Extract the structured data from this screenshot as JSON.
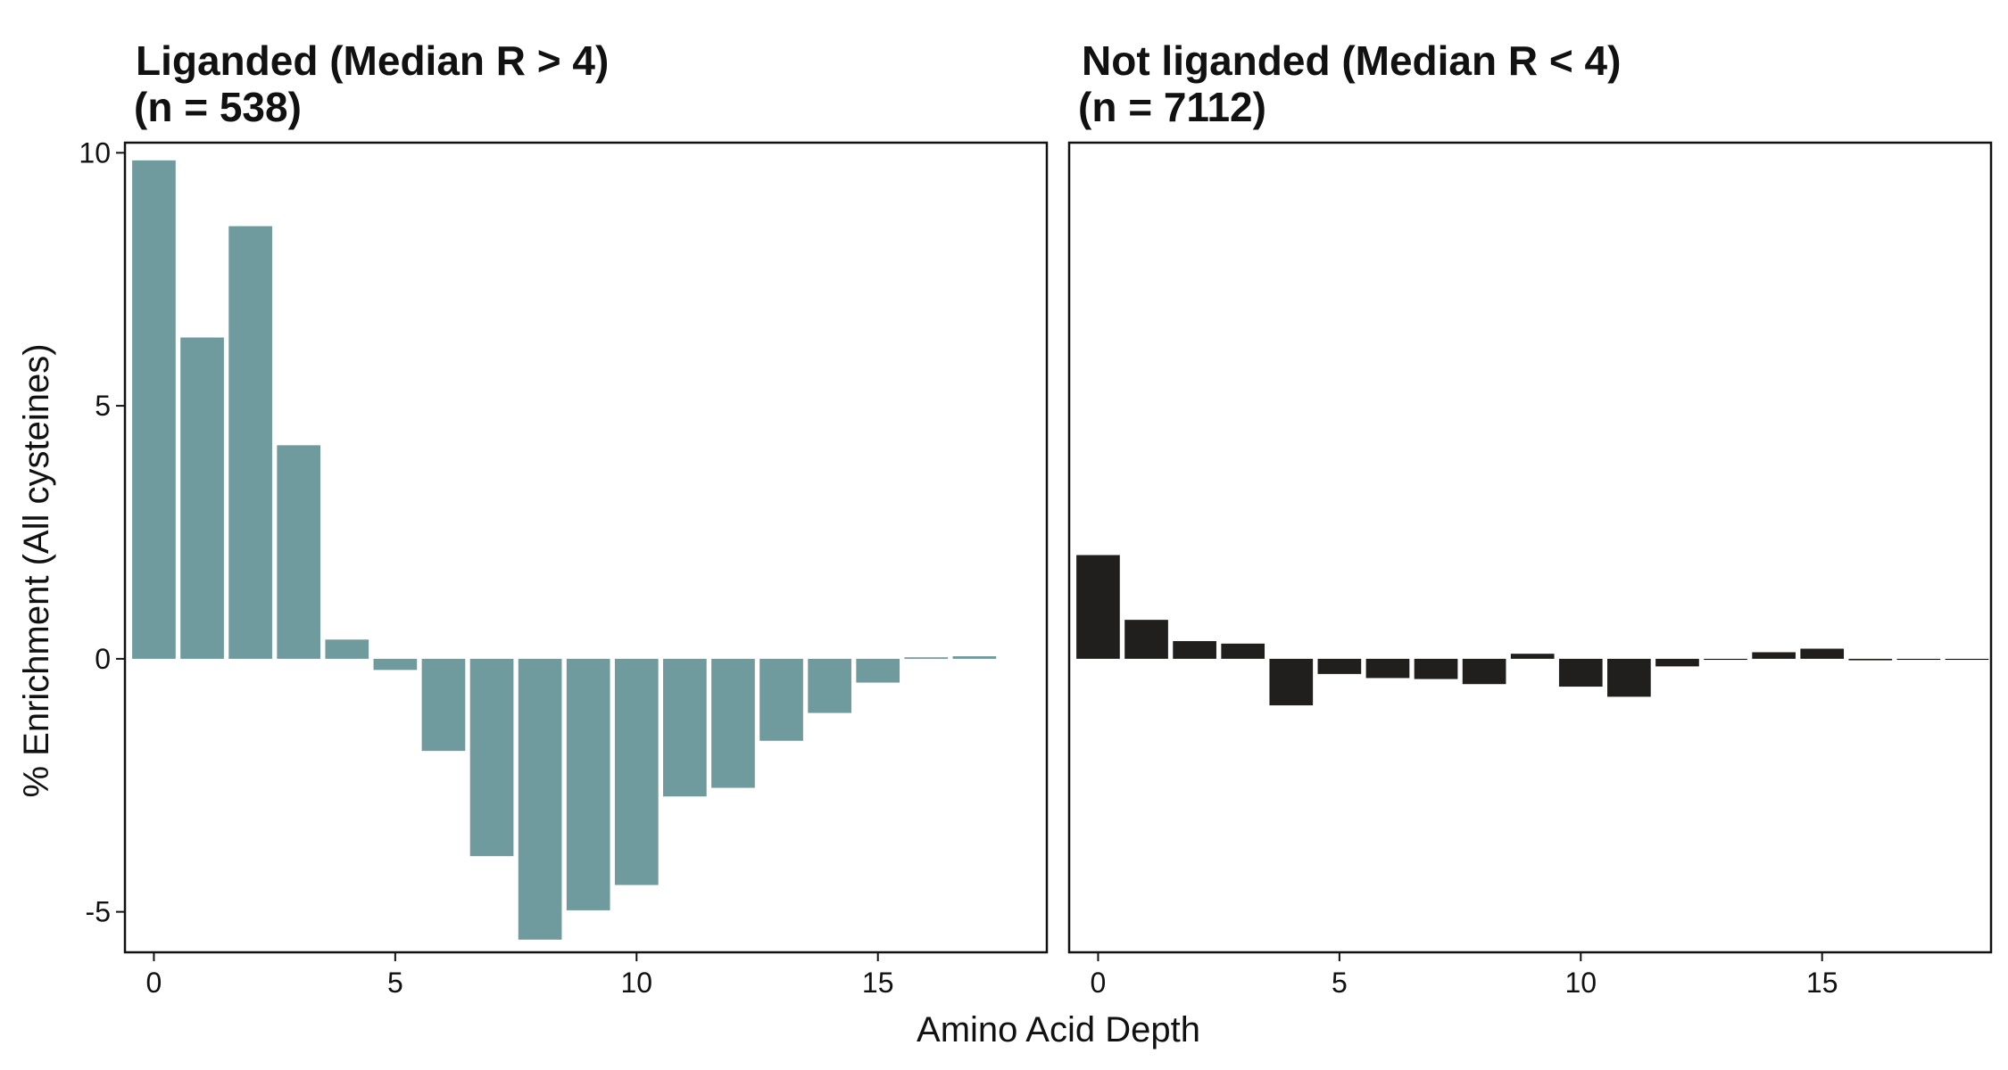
{
  "figure": {
    "xlabel": "Amino Acid Depth",
    "ylabel": "% Enrichment (All cysteines)"
  },
  "chart_data": [
    {
      "type": "bar",
      "title": "Liganded (Median R > 4)",
      "subtitle": "(n = 538)",
      "color": "#6f9a9e",
      "xlim": [
        -0.6,
        18.5
      ],
      "ylim": [
        -5.8,
        10.2
      ],
      "x_ticks": [
        0,
        5,
        10,
        15
      ],
      "y_ticks": [
        10,
        5,
        0,
        -5
      ],
      "x": [
        0,
        1,
        2,
        3,
        4,
        5,
        6,
        7,
        8,
        9,
        10,
        11,
        12,
        13,
        14,
        15,
        16,
        17
      ],
      "values": [
        9.85,
        6.35,
        8.55,
        4.22,
        0.38,
        -0.22,
        -1.82,
        -3.9,
        -5.55,
        -4.97,
        -4.47,
        -2.72,
        -2.55,
        -1.62,
        -1.07,
        -0.47,
        0.03,
        0.05
      ]
    },
    {
      "type": "bar",
      "title": "Not liganded (Median R < 4)",
      "subtitle": "(n = 7112)",
      "color": "#211f1d",
      "xlim": [
        -0.6,
        18.5
      ],
      "ylim": [
        -5.8,
        10.2
      ],
      "x_ticks": [
        0,
        5,
        10,
        15
      ],
      "y_ticks": [
        10,
        5,
        0,
        -5
      ],
      "x": [
        0,
        1,
        2,
        3,
        4,
        5,
        6,
        7,
        8,
        9,
        10,
        11,
        12,
        13,
        14,
        15,
        16,
        17,
        18
      ],
      "values": [
        2.05,
        0.77,
        0.35,
        0.3,
        -0.92,
        -0.3,
        -0.38,
        -0.4,
        -0.5,
        0.1,
        -0.55,
        -0.75,
        -0.15,
        -0.02,
        0.13,
        0.2,
        -0.03,
        -0.02,
        -0.02
      ]
    }
  ]
}
